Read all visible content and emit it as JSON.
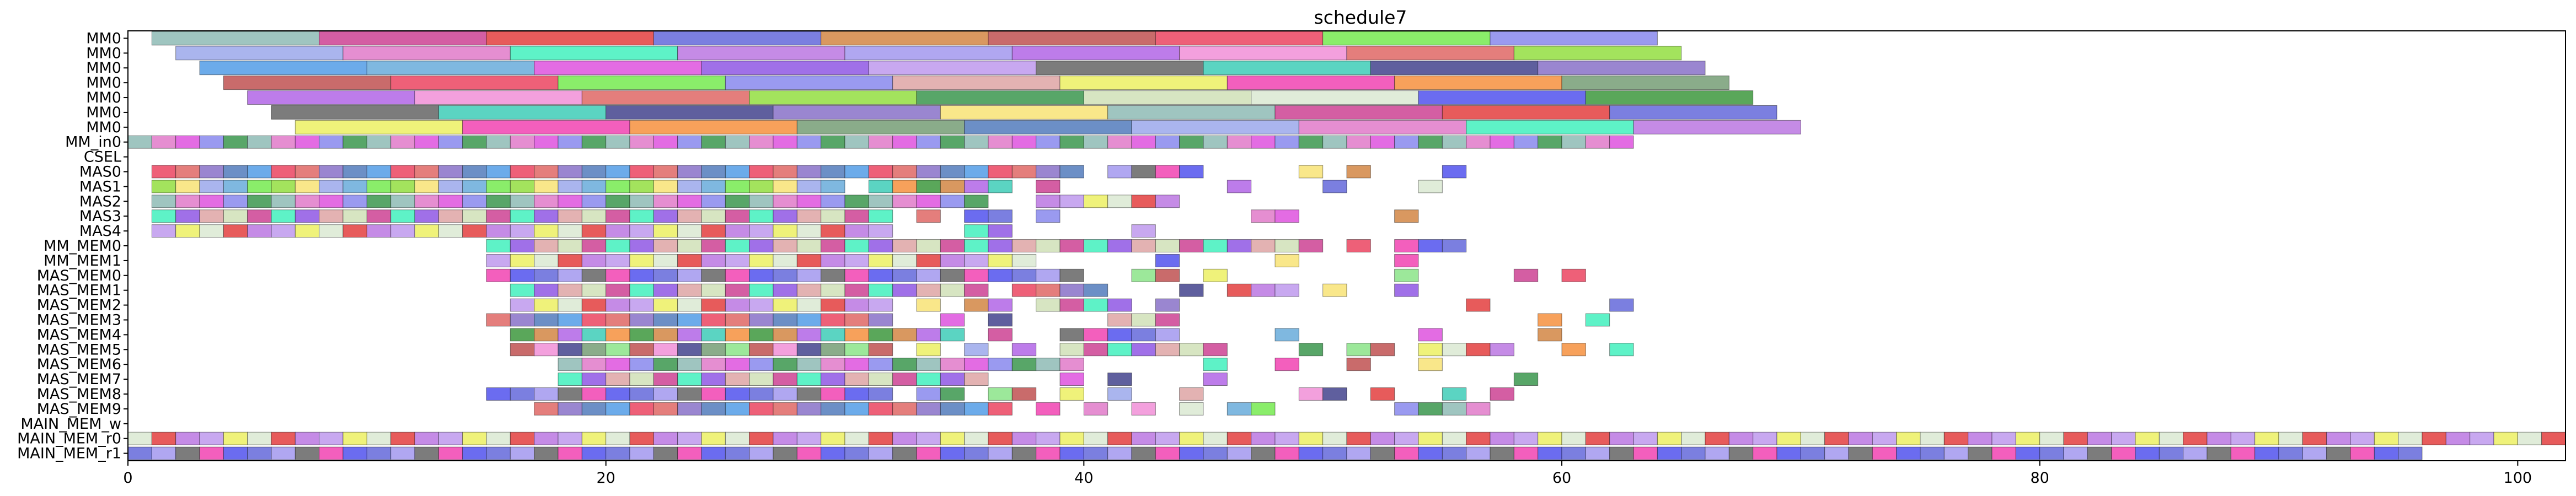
{
  "chart_data": {
    "type": "gantt",
    "title": "schedule7",
    "xlabel": "",
    "ylabel": "",
    "xlim": [
      0,
      102
    ],
    "xticks": [
      0,
      20,
      40,
      60,
      80,
      100
    ],
    "grid": false,
    "legend": "none",
    "rows": [
      "MM0",
      "MM0",
      "MM0",
      "MM0",
      "MM0",
      "MM0",
      "MM0",
      "MM_in0",
      "CSEL",
      "MAS0",
      "MAS1",
      "MAS2",
      "MAS3",
      "MAS4",
      "MM_MEM0",
      "MM_MEM1",
      "MAS_MEM0",
      "MAS_MEM1",
      "MAS_MEM2",
      "MAS_MEM3",
      "MAS_MEM4",
      "MAS_MEM5",
      "MAS_MEM6",
      "MAS_MEM7",
      "MAS_MEM8",
      "MAS_MEM9",
      "MAIN_MEM_w",
      "MAIN_MEM_r0",
      "MAIN_MEM_r1"
    ],
    "mm_rows": [
      {
        "row": 0,
        "starts": [
          1,
          8,
          15,
          22,
          29,
          36,
          43,
          50,
          57
        ],
        "duration": 7
      },
      {
        "row": 1,
        "starts": [
          2,
          9,
          16,
          23,
          30,
          37,
          44,
          51,
          58
        ],
        "duration": 7
      },
      {
        "row": 2,
        "starts": [
          3,
          10,
          17,
          24,
          31,
          38,
          45,
          52,
          59
        ],
        "duration": 7
      },
      {
        "row": 3,
        "starts": [
          4,
          11,
          18,
          25,
          32,
          39,
          46,
          53,
          60
        ],
        "duration": 7
      },
      {
        "row": 4,
        "starts": [
          5,
          12,
          19,
          26,
          33,
          40,
          47,
          54,
          61
        ],
        "duration": 7
      },
      {
        "row": 5,
        "starts": [
          6,
          13,
          20,
          27,
          34,
          41,
          48,
          55,
          62
        ],
        "duration": 7
      },
      {
        "row": 6,
        "starts": [
          7,
          14,
          21,
          28,
          35,
          42,
          49,
          56,
          63
        ],
        "duration": 7
      }
    ],
    "unit_rows": [
      {
        "row": 7,
        "x": [
          0,
          1,
          2,
          3,
          4,
          5,
          6,
          7,
          8,
          9,
          10,
          11,
          12,
          13,
          14,
          15,
          16,
          17,
          18,
          19,
          20,
          21,
          22,
          23,
          24,
          25,
          26,
          27,
          28,
          29,
          30,
          31,
          32,
          33,
          34,
          35,
          36,
          37,
          38,
          39,
          40,
          41,
          42,
          43,
          44,
          45,
          46,
          47,
          48,
          49,
          50,
          51,
          52,
          53,
          54,
          55,
          56,
          57,
          58,
          59,
          60,
          61,
          62
        ]
      },
      {
        "row": 9,
        "x": [
          1,
          2,
          3,
          4,
          5,
          6,
          7,
          8,
          9,
          10,
          11,
          12,
          13,
          14,
          15,
          16,
          17,
          18,
          19,
          20,
          21,
          22,
          23,
          24,
          25,
          26,
          27,
          28,
          29,
          30,
          31,
          32,
          33,
          34,
          35,
          36,
          37,
          38,
          39,
          41,
          42,
          43,
          44,
          49,
          51,
          55
        ]
      },
      {
        "row": 10,
        "x": [
          1,
          2,
          3,
          4,
          5,
          6,
          7,
          8,
          9,
          10,
          11,
          12,
          13,
          14,
          15,
          16,
          17,
          18,
          19,
          20,
          21,
          22,
          23,
          24,
          25,
          26,
          27,
          28,
          29,
          31,
          32,
          33,
          34,
          35,
          36,
          38,
          46,
          50,
          54
        ]
      },
      {
        "row": 11,
        "x": [
          1,
          2,
          3,
          4,
          5,
          6,
          7,
          8,
          9,
          10,
          11,
          12,
          13,
          14,
          15,
          16,
          17,
          18,
          19,
          20,
          21,
          22,
          23,
          24,
          25,
          26,
          27,
          28,
          29,
          30,
          31,
          32,
          33,
          34,
          35,
          38,
          39,
          40,
          41,
          42,
          43
        ]
      },
      {
        "row": 12,
        "x": [
          1,
          2,
          3,
          4,
          5,
          6,
          7,
          8,
          9,
          10,
          11,
          12,
          13,
          14,
          15,
          16,
          17,
          18,
          19,
          20,
          21,
          22,
          23,
          24,
          25,
          26,
          27,
          28,
          29,
          30,
          31,
          33,
          35,
          36,
          38,
          47,
          48,
          53
        ]
      },
      {
        "row": 13,
        "x": [
          1,
          2,
          3,
          4,
          5,
          6,
          7,
          8,
          9,
          10,
          11,
          12,
          13,
          14,
          15,
          16,
          17,
          18,
          19,
          20,
          21,
          22,
          23,
          24,
          25,
          26,
          27,
          28,
          29,
          30,
          31,
          35,
          36,
          42
        ]
      },
      {
        "row": 14,
        "x": [
          15,
          16,
          17,
          18,
          19,
          20,
          21,
          22,
          23,
          24,
          25,
          26,
          27,
          28,
          29,
          30,
          31,
          32,
          33,
          34,
          35,
          36,
          37,
          38,
          39,
          40,
          41,
          42,
          43,
          44,
          45,
          46,
          47,
          48,
          49,
          51,
          53,
          54,
          55
        ]
      },
      {
        "row": 15,
        "x": [
          15,
          16,
          17,
          18,
          19,
          20,
          21,
          22,
          23,
          24,
          25,
          26,
          27,
          28,
          29,
          30,
          31,
          32,
          33,
          34,
          35,
          36,
          37,
          43,
          48,
          53
        ]
      },
      {
        "row": 16,
        "x": [
          15,
          16,
          17,
          18,
          19,
          20,
          21,
          22,
          23,
          24,
          25,
          26,
          27,
          28,
          29,
          30,
          31,
          32,
          33,
          34,
          35,
          36,
          37,
          38,
          39,
          42,
          43,
          45,
          53,
          58,
          60
        ]
      },
      {
        "row": 17,
        "x": [
          16,
          17,
          18,
          19,
          20,
          21,
          22,
          23,
          24,
          25,
          26,
          27,
          28,
          29,
          30,
          31,
          32,
          33,
          34,
          35,
          37,
          38,
          39,
          40,
          44,
          46,
          47,
          48,
          50,
          53
        ]
      },
      {
        "row": 18,
        "x": [
          16,
          17,
          18,
          19,
          20,
          21,
          22,
          23,
          24,
          25,
          26,
          27,
          28,
          29,
          30,
          31,
          33,
          35,
          36,
          38,
          39,
          40,
          41,
          43,
          56,
          62
        ]
      },
      {
        "row": 19,
        "x": [
          15,
          16,
          17,
          18,
          19,
          20,
          21,
          22,
          23,
          24,
          25,
          26,
          27,
          28,
          29,
          30,
          31,
          34,
          36,
          41,
          42,
          43,
          59,
          61
        ]
      },
      {
        "row": 20,
        "x": [
          16,
          17,
          18,
          19,
          20,
          21,
          22,
          23,
          24,
          25,
          26,
          27,
          28,
          29,
          30,
          31,
          32,
          33,
          34,
          36,
          39,
          40,
          41,
          42,
          43,
          48,
          54,
          59
        ]
      },
      {
        "row": 21,
        "x": [
          16,
          17,
          18,
          19,
          20,
          21,
          22,
          23,
          24,
          25,
          26,
          27,
          28,
          29,
          30,
          31,
          33,
          35,
          37,
          39,
          40,
          41,
          42,
          43,
          44,
          45,
          49,
          51,
          52,
          54,
          55,
          56,
          57,
          60,
          62
        ]
      },
      {
        "row": 22,
        "x": [
          18,
          19,
          20,
          21,
          22,
          23,
          24,
          25,
          26,
          27,
          28,
          29,
          30,
          31,
          32,
          33,
          34,
          35,
          36,
          37,
          38,
          39,
          45,
          48,
          51,
          54
        ]
      },
      {
        "row": 23,
        "x": [
          18,
          19,
          20,
          21,
          22,
          23,
          24,
          25,
          26,
          27,
          28,
          29,
          30,
          31,
          32,
          33,
          34,
          35,
          39,
          41,
          45,
          58
        ]
      },
      {
        "row": 24,
        "x": [
          15,
          16,
          17,
          18,
          19,
          20,
          21,
          22,
          23,
          24,
          25,
          26,
          27,
          28,
          29,
          30,
          31,
          33,
          34,
          36,
          37,
          39,
          41,
          44,
          49,
          50,
          52,
          55,
          57
        ]
      },
      {
        "row": 25,
        "x": [
          17,
          18,
          19,
          20,
          21,
          22,
          23,
          24,
          25,
          26,
          27,
          28,
          29,
          30,
          31,
          32,
          33,
          34,
          35,
          36,
          38,
          40,
          42,
          44,
          46,
          47,
          53,
          54,
          55,
          56
        ]
      },
      {
        "row": 27,
        "x": [
          0,
          1,
          2,
          3,
          4,
          5,
          6,
          7,
          8,
          9,
          10,
          11,
          12,
          13,
          14,
          15,
          16,
          17,
          18,
          19,
          20,
          21,
          22,
          23,
          24,
          25,
          26,
          27,
          28,
          29,
          30,
          31,
          32,
          33,
          34,
          35,
          36,
          37,
          38,
          39,
          40,
          41,
          42,
          43,
          44,
          45,
          46,
          47,
          48,
          49,
          50,
          51,
          52,
          53,
          54,
          55,
          56,
          57,
          58,
          59,
          60,
          61,
          62,
          63,
          64,
          65,
          66,
          67,
          68,
          69,
          70,
          71,
          72,
          73,
          74,
          75,
          76,
          77,
          78,
          79,
          80,
          81,
          82,
          83,
          84,
          85,
          86,
          87,
          88,
          89,
          90,
          91,
          92,
          93,
          94,
          95,
          96,
          97,
          98,
          99,
          100,
          101
        ]
      },
      {
        "row": 28,
        "x": [
          0,
          1,
          2,
          3,
          4,
          5,
          6,
          7,
          8,
          9,
          10,
          11,
          12,
          13,
          14,
          15,
          16,
          17,
          18,
          19,
          20,
          21,
          22,
          23,
          24,
          25,
          26,
          27,
          28,
          29,
          30,
          31,
          32,
          33,
          34,
          35,
          36,
          37,
          38,
          39,
          40,
          41,
          42,
          43,
          44,
          45,
          46,
          47,
          48,
          49,
          50,
          51,
          52,
          53,
          54,
          55,
          56,
          57,
          58,
          59,
          60,
          61,
          62,
          63,
          64,
          65,
          66,
          67,
          68,
          69,
          70,
          71,
          72,
          73,
          74,
          75,
          76,
          77,
          78,
          79,
          80,
          81,
          82,
          83,
          84,
          85,
          86,
          87,
          88,
          89,
          90,
          91,
          92,
          93,
          94,
          95
        ]
      }
    ],
    "palette": [
      "#9fc5c0",
      "#6b6cf0",
      "#6c8fc6",
      "#d45ea3",
      "#5aa75a",
      "#aab5ee",
      "#e75b5b",
      "#9ce89a",
      "#e58ed1",
      "#7b7fe0",
      "#6cabea",
      "#5ef2c7",
      "#d99860",
      "#7fb8e0",
      "#c58be6",
      "#c96b6b",
      "#e36ce3",
      "#b0a7f1",
      "#ee6078",
      "#a070e8",
      "#bd7cea",
      "#8aed6a",
      "#c8a8f0",
      "#f3a0dd",
      "#9a9af0",
      "#7c7c7c",
      "#e47e7c",
      "#e3b2b2",
      "#5bd4c2",
      "#a3e35d",
      "#eff27a",
      "#5f5f9e",
      "#58a668",
      "#f35fbd",
      "#9a86d0",
      "#d7e5c2",
      "#f7a15b",
      "#f9e78a",
      "#e0ecd9",
      "#8aac8a"
    ]
  }
}
